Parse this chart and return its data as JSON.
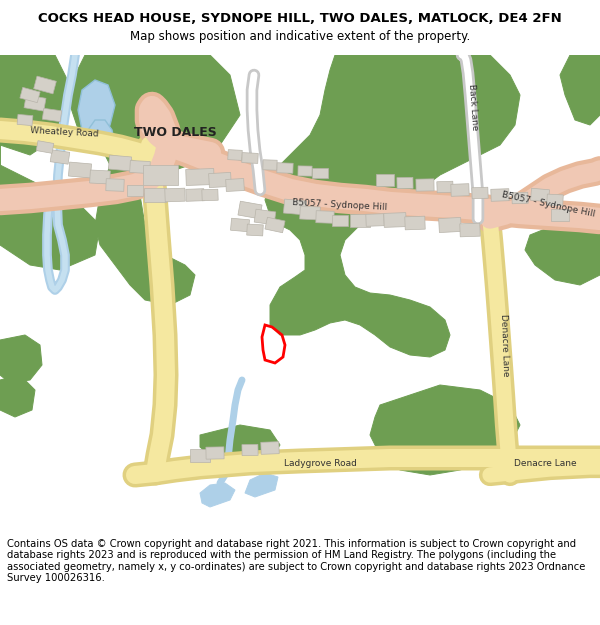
{
  "title": "COCKS HEAD HOUSE, SYDNOPE HILL, TWO DALES, MATLOCK, DE4 2FN",
  "subtitle": "Map shows position and indicative extent of the property.",
  "footer": "Contains OS data © Crown copyright and database right 2021. This information is subject to Crown copyright and database rights 2023 and is reproduced with the permission of HM Land Registry. The polygons (including the associated geometry, namely x, y co-ordinates) are subject to Crown copyright and database rights 2023 Ordnance Survey 100026316.",
  "bg_color": "#ffffff",
  "map_bg": "#f5f2ee",
  "green_color": "#6e9e52",
  "blue_color": "#aed0e8",
  "road_main_color": "#f0c8b4",
  "road_main_edge": "#e8b89a",
  "road_yellow_color": "#f5e8a0",
  "road_yellow_edge": "#e0d080",
  "road_white_color": "#e8e8e8",
  "building_color": "#d4d0c8",
  "building_edge": "#b8b4aa",
  "plot_color": "#ff0000",
  "title_fontsize": 9.5,
  "subtitle_fontsize": 8.5,
  "footer_fontsize": 7.2
}
